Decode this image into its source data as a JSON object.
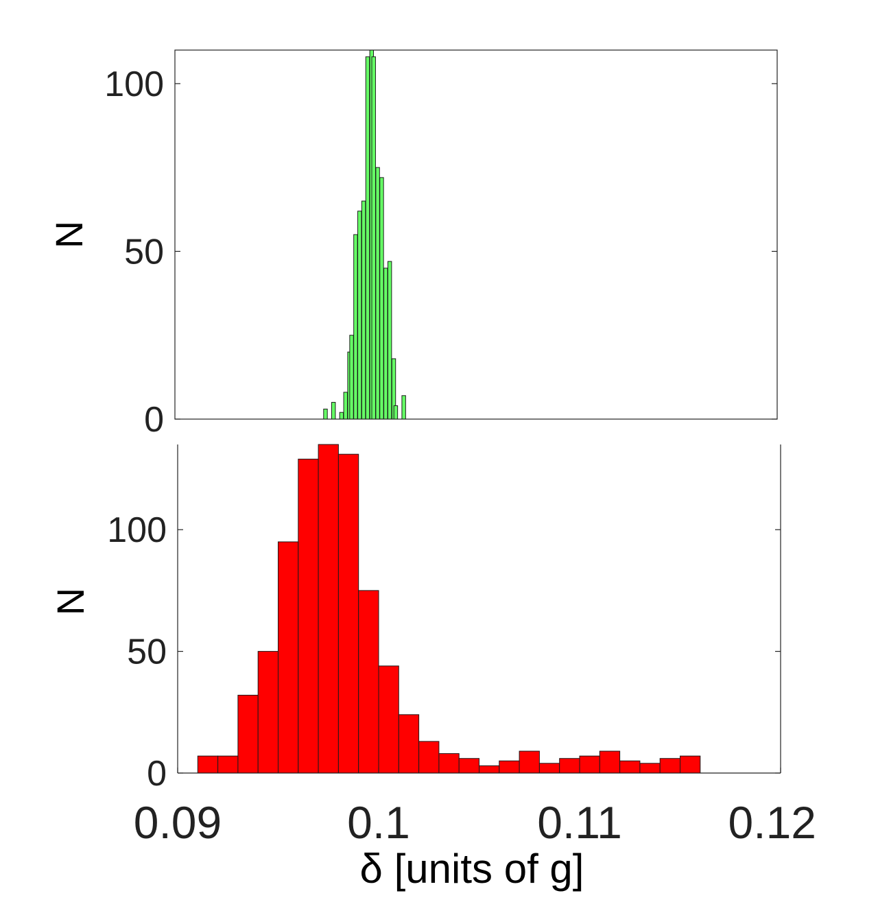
{
  "chart_data": [
    {
      "type": "bar",
      "panel": "top",
      "ylabel": "N",
      "xlim": [
        0.09,
        0.12
      ],
      "ylim": [
        0,
        110
      ],
      "yticks": [
        0,
        50,
        100
      ],
      "bar_color": "#66ff66",
      "grid": false,
      "bin_width": 0.000185,
      "x": [
        0.0975,
        0.0979,
        0.0983,
        0.0985,
        0.0987,
        0.0988,
        0.099,
        0.0992,
        0.0994,
        0.0996,
        0.0998,
        0.0999,
        0.1001,
        0.1003,
        0.1005,
        0.1007,
        0.1009,
        0.101,
        0.1014
      ],
      "values": [
        3,
        5,
        2,
        8,
        20,
        25,
        55,
        62,
        65,
        108,
        110,
        108,
        75,
        72,
        45,
        47,
        18,
        4,
        7
      ]
    },
    {
      "type": "bar",
      "panel": "bottom",
      "ylabel": "N",
      "xlabel": "δ [units of g]",
      "xlim": [
        0.09,
        0.12
      ],
      "ylim": [
        0,
        135
      ],
      "yticks": [
        0,
        50,
        100
      ],
      "xtick_labels": [
        "0.09",
        "0.1",
        "0.11",
        "0.12"
      ],
      "xticks": [
        0.09,
        0.1,
        0.11,
        0.12
      ],
      "bar_color": "#ff0000",
      "grid": false,
      "bin_width": 0.001,
      "x": [
        0.0915,
        0.0925,
        0.0935,
        0.0945,
        0.0955,
        0.0965,
        0.0975,
        0.0985,
        0.0995,
        0.1005,
        0.1015,
        0.1025,
        0.1035,
        0.1045,
        0.1055,
        0.1065,
        0.1075,
        0.1085,
        0.1095,
        0.1105,
        0.1115,
        0.1125,
        0.1135,
        0.1145,
        0.1155
      ],
      "values": [
        7,
        7,
        32,
        50,
        95,
        129,
        135,
        131,
        75,
        44,
        24,
        13,
        8,
        6,
        3,
        5,
        9,
        4,
        6,
        7,
        9,
        5,
        4,
        6,
        7
      ]
    }
  ]
}
